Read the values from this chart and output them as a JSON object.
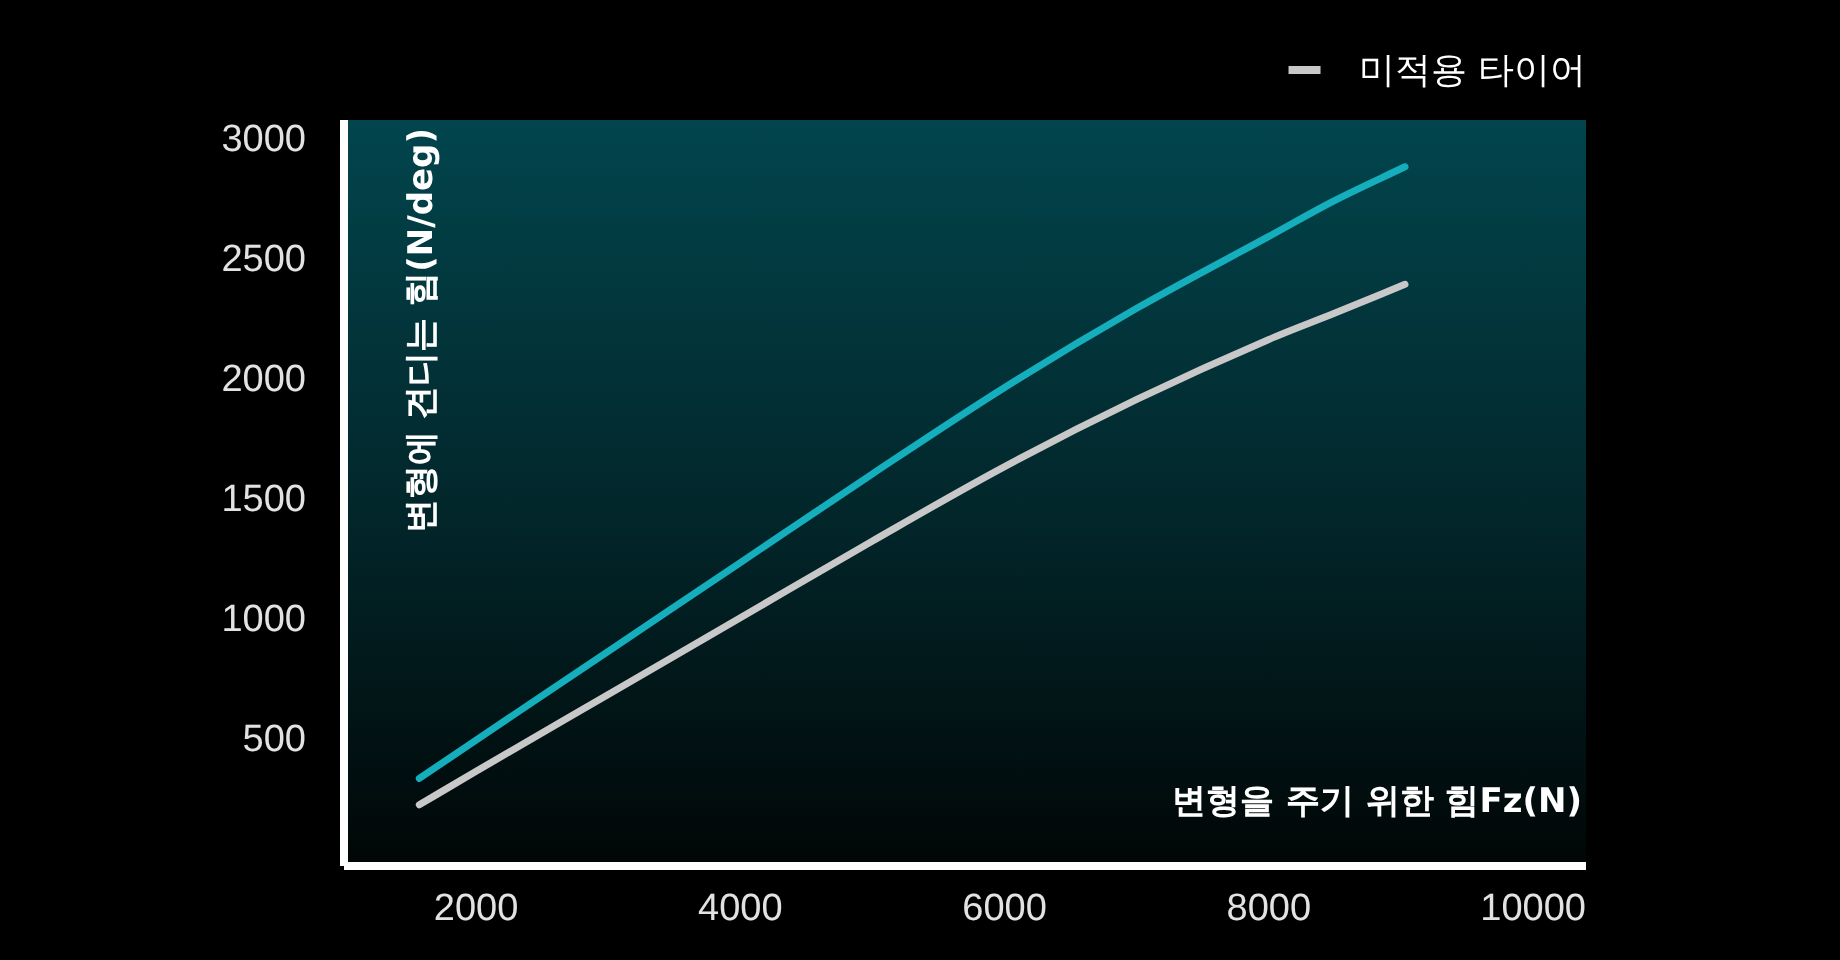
{
  "chart_data": {
    "type": "line",
    "xlabel": "변형을 주기 위한 힘Fz(N)",
    "ylabel": "변형에 견디는 힘(N/deg)",
    "xlim": [
      1000,
      10400
    ],
    "ylim": [
      -35,
      3075
    ],
    "xticks": [
      2000,
      4000,
      6000,
      8000,
      10000
    ],
    "yticks": [
      500,
      1000,
      1500,
      2000,
      2500,
      3000
    ],
    "legend": "top right",
    "series": [
      {
        "color": "#14aebc",
        "x": [
          1570,
          2000,
          3000,
          4000,
          5000,
          6000,
          7000,
          8000,
          8500,
          9030
        ],
        "values": [
          330,
          490,
          860,
          1230,
          1600,
          1960,
          2290,
          2590,
          2740,
          2880
        ]
      },
      {
        "name": "미적용 타이어",
        "color": "#c8c8c8",
        "x": [
          1570,
          2000,
          3000,
          4000,
          5000,
          6000,
          7000,
          8000,
          8500,
          9030
        ],
        "values": [
          220,
          360,
          680,
          1000,
          1320,
          1630,
          1910,
          2160,
          2270,
          2390
        ]
      }
    ]
  }
}
